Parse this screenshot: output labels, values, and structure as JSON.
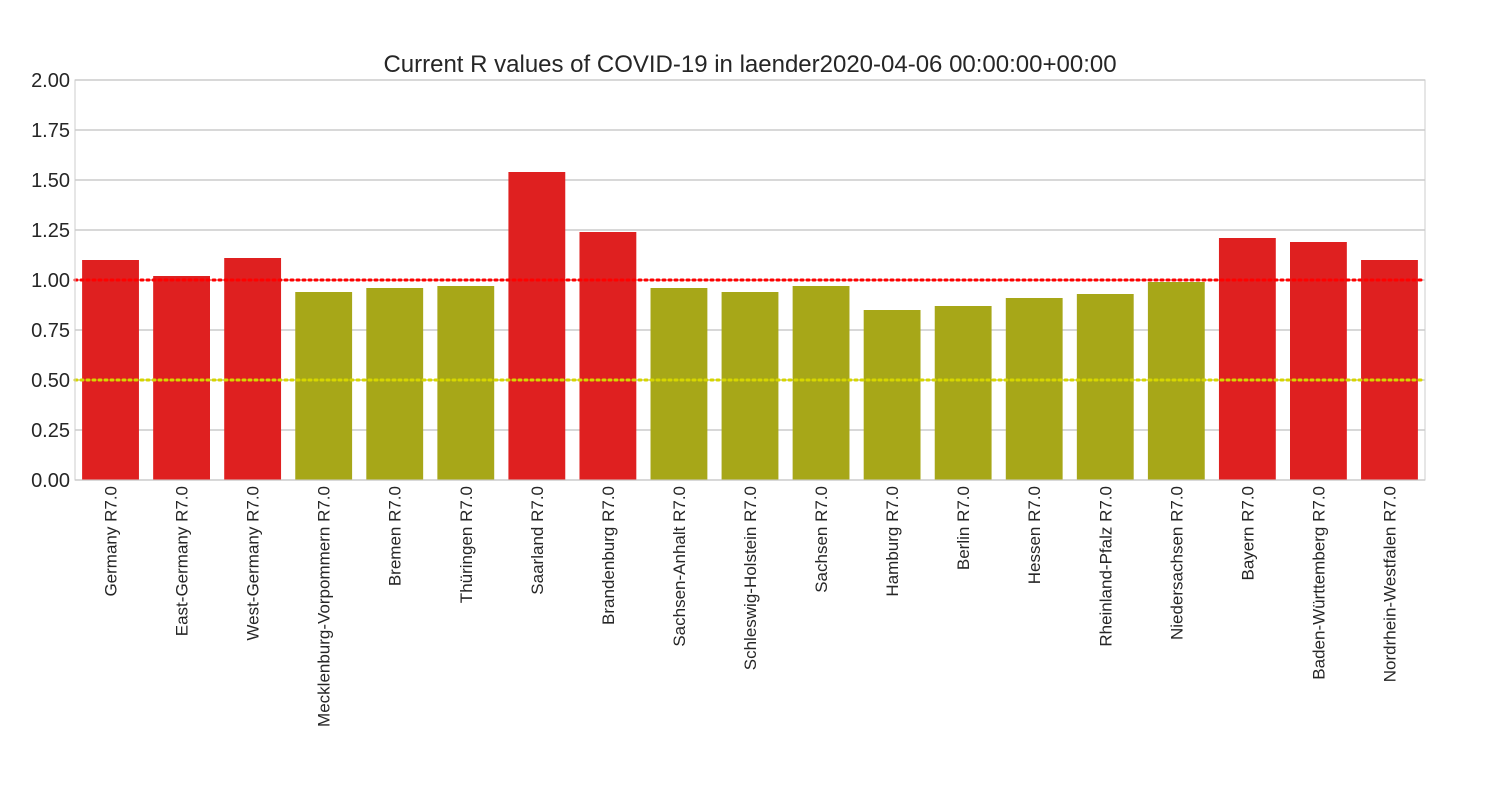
{
  "chart_data": {
    "type": "bar",
    "title": "Current R values of COVID-19 in laender2020-04-06 00:00:00+00:00",
    "xlabel": "",
    "ylabel": "",
    "ylim": [
      0,
      2
    ],
    "yticks": [
      "0.00",
      "0.25",
      "0.50",
      "0.75",
      "1.00",
      "1.25",
      "1.50",
      "1.75",
      "2.00"
    ],
    "grid": true,
    "categories": [
      "Germany R7.0",
      "East-Germany R7.0",
      "West-Germany R7.0",
      "Mecklenburg-Vorpommern R7.0",
      "Bremen R7.0",
      "Thüringen R7.0",
      "Saarland R7.0",
      "Brandenburg R7.0",
      "Sachsen-Anhalt R7.0",
      "Schleswig-Holstein R7.0",
      "Sachsen R7.0",
      "Hamburg R7.0",
      "Berlin R7.0",
      "Hessen R7.0",
      "Rheinland-Pfalz R7.0",
      "Niedersachsen R7.0",
      "Bayern R7.0",
      "Baden-Württemberg R7.0",
      "Nordrhein-Westfalen R7.0"
    ],
    "values": [
      1.1,
      1.02,
      1.11,
      0.94,
      0.96,
      0.97,
      1.54,
      1.24,
      0.96,
      0.94,
      0.97,
      0.85,
      0.87,
      0.91,
      0.93,
      0.99,
      1.21,
      1.19,
      1.1
    ],
    "colors": {
      "above_threshold": "#df2020",
      "below_threshold": "#a7a718",
      "line_1": "#ff0000",
      "line_0_5": "#d6d600"
    },
    "reference_lines": [
      {
        "y": 1.0,
        "style": "dotted",
        "color": "#ff0000"
      },
      {
        "y": 0.5,
        "style": "dotted",
        "color": "#d6d600"
      }
    ]
  }
}
